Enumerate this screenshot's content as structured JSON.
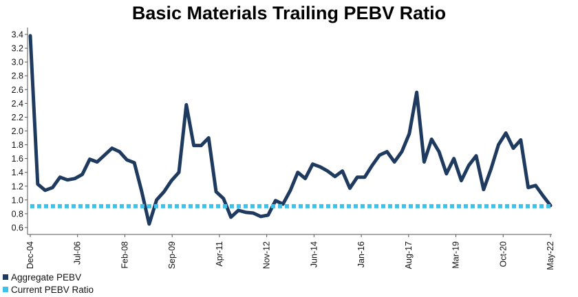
{
  "chart_data": {
    "type": "line",
    "title": "Basic Materials Trailing PEBV Ratio",
    "xlabel": "",
    "ylabel": "",
    "ylim": [
      0.5,
      3.5
    ],
    "yticks": [
      0.6,
      0.8,
      1.0,
      1.2,
      1.4,
      1.6,
      1.8,
      2.0,
      2.2,
      2.4,
      2.6,
      2.8,
      3.0,
      3.2,
      3.4
    ],
    "x_tick_labels": [
      "Dec-04",
      "Jul-06",
      "Feb-08",
      "Sep-09",
      "Apr-11",
      "Nov-12",
      "Jun-14",
      "Jan-16",
      "Aug-17",
      "Mar-19",
      "Oct-20",
      "May-22"
    ],
    "grid": false,
    "legend_position": "bottom-left",
    "series": [
      {
        "name": "Aggregate PEBV",
        "color": "#1f3a5f",
        "values": [
          3.38,
          1.23,
          1.14,
          1.18,
          1.33,
          1.29,
          1.31,
          1.37,
          1.59,
          1.55,
          1.65,
          1.75,
          1.7,
          1.58,
          1.54,
          1.12,
          0.65,
          1.0,
          1.12,
          1.28,
          1.4,
          2.38,
          1.79,
          1.79,
          1.9,
          1.12,
          1.02,
          0.75,
          0.85,
          0.82,
          0.81,
          0.76,
          0.78,
          0.99,
          0.94,
          1.14,
          1.4,
          1.31,
          1.52,
          1.48,
          1.42,
          1.34,
          1.42,
          1.17,
          1.33,
          1.33,
          1.5,
          1.65,
          1.7,
          1.55,
          1.7,
          1.96,
          2.56,
          1.55,
          1.88,
          1.7,
          1.38,
          1.6,
          1.28,
          1.5,
          1.64,
          1.15,
          1.45,
          1.8,
          1.97,
          1.75,
          1.87,
          1.18,
          1.21,
          1.06,
          0.92
        ]
      },
      {
        "name": "Current PEBV Ratio",
        "color": "#3ec1ea",
        "values": [
          0.91,
          0.91
        ]
      }
    ]
  }
}
